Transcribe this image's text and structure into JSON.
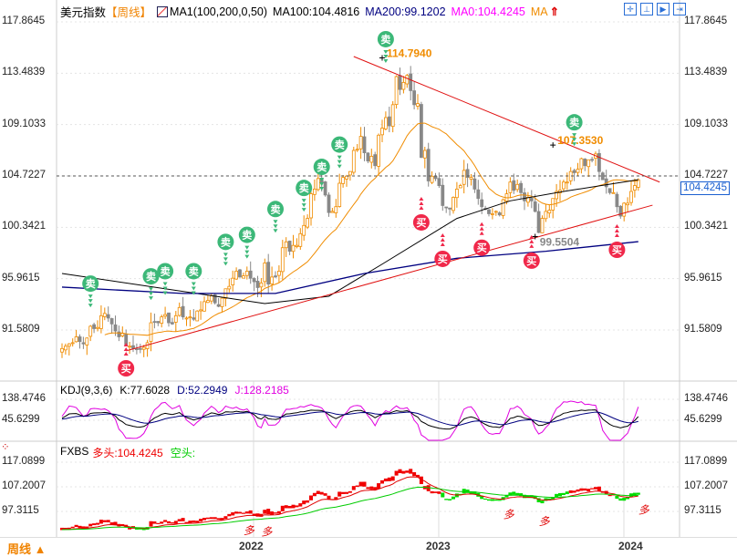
{
  "header": {
    "name": "美元指数",
    "period": "【周线】",
    "ma_label": "MA1(100,200,0,50)",
    "ma100": "MA100:104.4816",
    "ma200": "MA200:99.1202",
    "ma0": "MA0:104.4245",
    "ma": "MA"
  },
  "tools": [
    "crosshair-icon",
    "indicator-icon",
    "play-icon",
    "exit-icon"
  ],
  "kdj": {
    "name": "KDJ(9,3,6)",
    "k": "K:77.6028",
    "d": "D:52.2949",
    "j": "J:128.2185"
  },
  "fxbs": {
    "name": "FXBS",
    "long": "多头:104.4245",
    "short": "空头:"
  },
  "footer": {
    "period": "周线 ▲",
    "years": [
      "2022",
      "2023",
      "2024"
    ]
  },
  "colors": {
    "up": "#f08c00",
    "down": "#888888",
    "ma100": "#000000",
    "ma200": "#000080",
    "orange": "#f08c00",
    "trend": "#e01010",
    "sell": "#3cb878",
    "buy": "#f0284a"
  },
  "chart_data": {
    "type": "candlestick",
    "title": "美元指数 周线",
    "ylim": [
      85.5,
      118
    ],
    "y_ticks": [
      "117.8645",
      "113.4839",
      "109.1033",
      "104.7227",
      "100.3421",
      "95.9615",
      "91.5809"
    ],
    "y_tick_values": [
      117.8645,
      113.4839,
      109.1033,
      104.7227,
      100.3421,
      95.9615,
      91.5809
    ],
    "current_price": "104.4245",
    "current_line": 104.7227,
    "closes": [
      90.0,
      90.2,
      90.4,
      90.5,
      91.0,
      90.6,
      90.4,
      90.9,
      91.9,
      91.7,
      91.8,
      92.8,
      93.0,
      92.6,
      92.1,
      91.5,
      91.0,
      91.3,
      90.3,
      90.2,
      90.0,
      89.9,
      90.0,
      90.1,
      90.5,
      92.2,
      92.3,
      92.2,
      92.7,
      92.9,
      92.2,
      92.1,
      92.8,
      93.5,
      92.7,
      92.6,
      92.7,
      92.5,
      93.2,
      93.3,
      94.0,
      94.1,
      94.5,
      93.9,
      93.6,
      94.3,
      95.1,
      95.3,
      96.0,
      96.6,
      96.1,
      96.2,
      96.6,
      96.0,
      95.7,
      95.2,
      95.6,
      97.3,
      95.5,
      96.1,
      96.1,
      96.6,
      98.6,
      99.1,
      98.3,
      98.8,
      98.8,
      99.8,
      100.5,
      101.1,
      103.2,
      103.6,
      104.5,
      104.2,
      103.1,
      101.6,
      101.7,
      102.1,
      104.1,
      104.6,
      104.7,
      105.1,
      106.9,
      107.0,
      108.1,
      106.7,
      106.0,
      106.4,
      105.6,
      108.2,
      108.8,
      109.7,
      109.0,
      110.8,
      113.2,
      112.1,
      112.7,
      113.3,
      112.0,
      110.8,
      110.9,
      106.3,
      106.9,
      104.3,
      104.7,
      104.5,
      103.9,
      102.2,
      102.0,
      101.9,
      102.9,
      103.6,
      103.9,
      105.2,
      104.6,
      104.6,
      103.6,
      102.8,
      102.1,
      101.9,
      101.5,
      101.5,
      101.7,
      101.4,
      102.7,
      103.2,
      104.2,
      103.5,
      104.0,
      103.3,
      102.6,
      102.9,
      102.6,
      101.7,
      99.9,
      101.1,
      101.7,
      101.8,
      102.8,
      103.4,
      103.5,
      104.2,
      104.2,
      105.1,
      105.0,
      105.3,
      106.2,
      105.6,
      106.1,
      106.1,
      106.6,
      105.1,
      104.4,
      103.8,
      103.3,
      103.3,
      102.1,
      101.3,
      102.4,
      102.4,
      103.4,
      103.9,
      104.4
    ],
    "ma100_points": [
      [
        0,
        96.4
      ],
      [
        57,
        93.84
      ],
      [
        75,
        94.46
      ],
      [
        90,
        97.2
      ],
      [
        111,
        101.1
      ],
      [
        126,
        102.6
      ],
      [
        141,
        103.4
      ],
      [
        162,
        104.4
      ]
    ],
    "ma200_points": [
      [
        0,
        95.24
      ],
      [
        34,
        94.7
      ],
      [
        60,
        94.7
      ],
      [
        85,
        96.4
      ],
      [
        111,
        97.7
      ],
      [
        136,
        98.3
      ],
      [
        162,
        99.12
      ]
    ],
    "trendlines": [
      [
        [
          82,
          114.91
        ],
        [
          168,
          104.2
        ]
      ],
      [
        [
          18,
          89.8
        ],
        [
          166,
          102.23
        ]
      ]
    ],
    "annotations": [
      {
        "idx": 90,
        "price": 114.794,
        "text": "114.7940",
        "color": "#f08c00"
      },
      {
        "idx": 138,
        "price": 107.353,
        "text": "107.3530",
        "color": "#f08c00"
      },
      {
        "idx": 133,
        "price": 99.5504,
        "text": "99.5504",
        "color": "#888888"
      }
    ],
    "signals": [
      {
        "idx": 8,
        "price": 95.54,
        "type": "sell",
        "label": "卖"
      },
      {
        "idx": 25,
        "price": 96.16,
        "type": "sell",
        "label": "卖"
      },
      {
        "idx": 29,
        "price": 96.6,
        "type": "sell",
        "label": "卖"
      },
      {
        "idx": 37,
        "price": 96.6,
        "type": "sell",
        "label": "卖"
      },
      {
        "idx": 46,
        "price": 99.1,
        "type": "sell",
        "label": "卖"
      },
      {
        "idx": 52,
        "price": 99.7,
        "type": "sell",
        "label": "卖"
      },
      {
        "idx": 60,
        "price": 101.9,
        "type": "sell",
        "label": "卖"
      },
      {
        "idx": 68,
        "price": 103.7,
        "type": "sell",
        "label": "卖"
      },
      {
        "idx": 73,
        "price": 105.5,
        "type": "sell",
        "label": "卖"
      },
      {
        "idx": 78,
        "price": 107.4,
        "type": "sell",
        "label": "卖"
      },
      {
        "idx": 91,
        "price": 116.39,
        "type": "sell",
        "label": "卖"
      },
      {
        "idx": 144,
        "price": 109.3,
        "type": "sell",
        "label": "卖"
      },
      {
        "idx": 18,
        "price": 86.7,
        "type": "buy",
        "label": "买"
      },
      {
        "idx": 101,
        "price": 100.76,
        "type": "buy",
        "label": "买"
      },
      {
        "idx": 107,
        "price": 97.65,
        "type": "buy",
        "label": "买"
      },
      {
        "idx": 118,
        "price": 98.6,
        "type": "buy",
        "label": "买"
      },
      {
        "idx": 132,
        "price": 97.5,
        "type": "buy",
        "label": "买"
      },
      {
        "idx": 156,
        "price": 98.42,
        "type": "buy",
        "label": "买"
      }
    ],
    "kdj_ticks": [
      "138.4746",
      "45.6299"
    ],
    "fxbs_ticks": [
      "117.0899",
      "107.2007",
      "97.3115"
    ],
    "fxbs_labels": [
      {
        "idx": 51,
        "text": "多"
      },
      {
        "idx": 56,
        "text": "多"
      },
      {
        "idx": 124,
        "text": "多"
      },
      {
        "idx": 134,
        "text": "多"
      },
      {
        "idx": 162,
        "text": "多"
      }
    ]
  }
}
